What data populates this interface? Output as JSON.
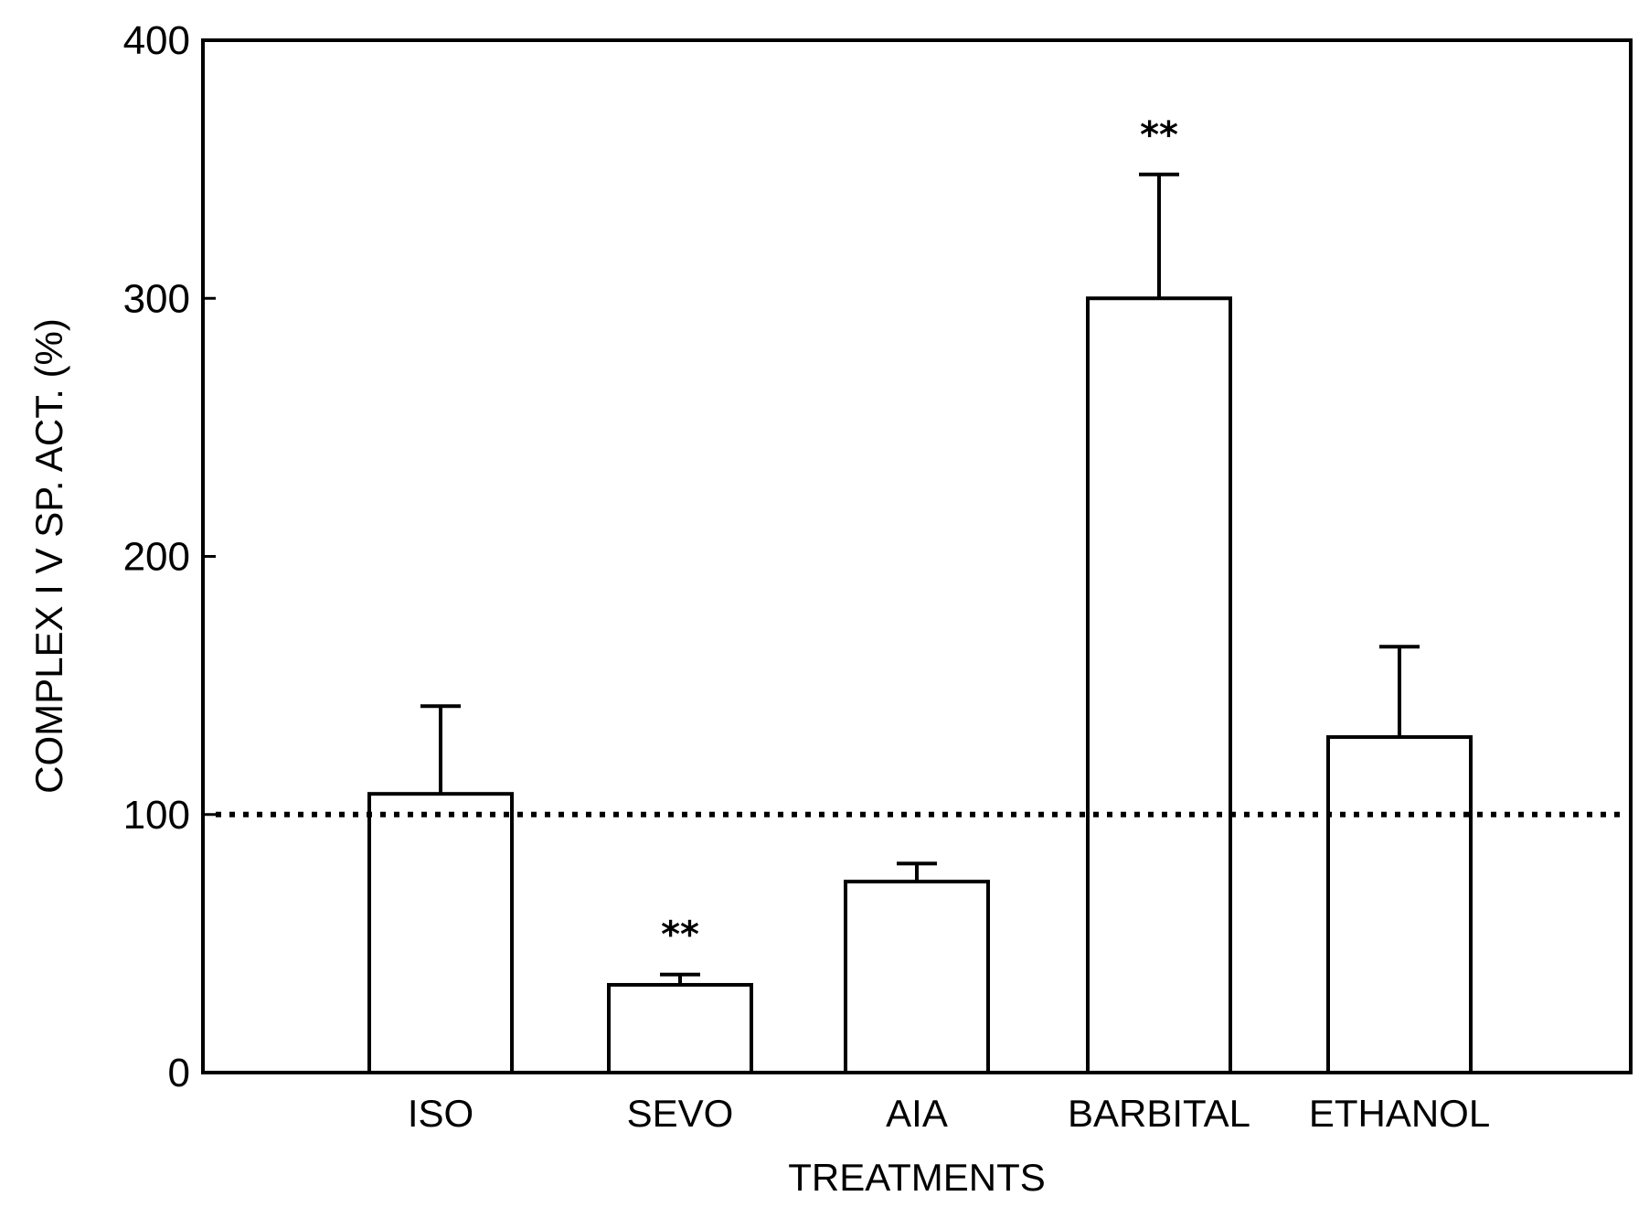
{
  "chart_data": {
    "type": "bar",
    "title": "",
    "xlabel": "TREATMENTS",
    "ylabel": "COMPLEX I V SP. ACT. (%)",
    "ylim": [
      0,
      400
    ],
    "yticks": [
      0,
      100,
      200,
      300,
      400
    ],
    "categories": [
      "ISO",
      "SEVO",
      "AIA",
      "BARBITAL",
      "ETHANOL"
    ],
    "values": [
      108,
      34,
      74,
      300,
      130
    ],
    "errors": [
      34,
      4,
      7,
      48,
      35
    ],
    "significance": [
      "",
      "**",
      "",
      "**",
      ""
    ],
    "reference_line": {
      "value": 100,
      "style": "dotted"
    },
    "grid": false,
    "colors": {
      "bar_fill": "#ffffff",
      "stroke": "#000000"
    }
  }
}
